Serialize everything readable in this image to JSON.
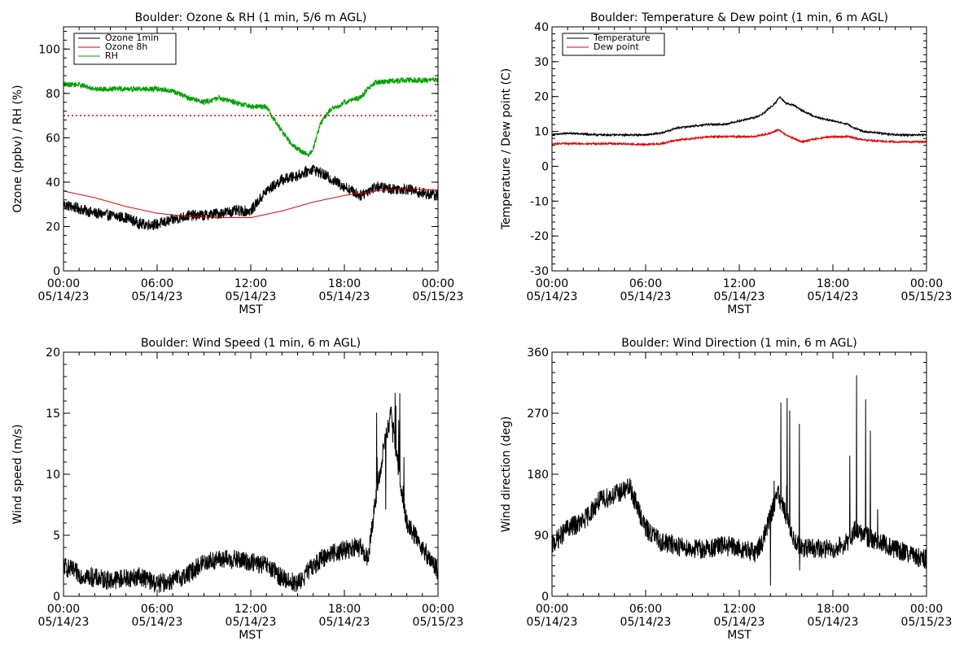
{
  "chart_data": [
    {
      "type": "line",
      "title": "Boulder: Ozone & RH (1 min, 5/6 m AGL)",
      "xlabel": "MST",
      "ylabel": "Ozone (ppbv) / RH (%)",
      "ylim": [
        0,
        110
      ],
      "y_major_ticks": [
        0,
        20,
        40,
        60,
        80,
        100
      ],
      "x_tick_labels": [
        [
          "00:00",
          "05/14/23"
        ],
        [
          "06:00",
          "05/14/23"
        ],
        [
          "12:00",
          "05/14/23"
        ],
        [
          "18:00",
          "05/14/23"
        ],
        [
          "00:00",
          "05/15/23"
        ]
      ],
      "xlim_hours": [
        0,
        24
      ],
      "legend_position": "top-left",
      "series": [
        {
          "name": "Ozone 1min",
          "color": "#000000",
          "noise": 2.5,
          "points": [
            [
              0,
              30
            ],
            [
              1,
              28
            ],
            [
              2,
              26
            ],
            [
              3,
              25
            ],
            [
              4,
              24
            ],
            [
              5,
              21
            ],
            [
              6,
              21
            ],
            [
              7,
              23
            ],
            [
              8,
              25
            ],
            [
              9,
              25
            ],
            [
              10,
              26
            ],
            [
              11,
              27
            ],
            [
              12,
              27
            ],
            [
              13,
              36
            ],
            [
              14,
              41
            ],
            [
              15,
              43
            ],
            [
              16,
              46
            ],
            [
              17,
              42
            ],
            [
              18,
              38
            ],
            [
              19,
              34
            ],
            [
              20,
              38
            ],
            [
              21,
              37
            ],
            [
              22,
              37
            ],
            [
              23,
              35
            ],
            [
              24,
              34
            ]
          ]
        },
        {
          "name": "Ozone 8h",
          "color": "#dd0000",
          "noise": 0,
          "points": [
            [
              0,
              36
            ],
            [
              2,
              33
            ],
            [
              4,
              29
            ],
            [
              6,
              26
            ],
            [
              8,
              24.5
            ],
            [
              10,
              24
            ],
            [
              12,
              24
            ],
            [
              14,
              27
            ],
            [
              16,
              31
            ],
            [
              18,
              34
            ],
            [
              20,
              36
            ],
            [
              22,
              37
            ],
            [
              24,
              36.5
            ]
          ]
        },
        {
          "name": "RH",
          "color": "#00a000",
          "noise": 1.2,
          "points": [
            [
              0,
              84
            ],
            [
              1,
              84
            ],
            [
              2,
              82
            ],
            [
              3,
              82
            ],
            [
              4,
              82
            ],
            [
              5,
              82
            ],
            [
              6,
              82
            ],
            [
              7,
              81
            ],
            [
              8,
              78
            ],
            [
              9,
              76
            ],
            [
              10,
              78
            ],
            [
              11,
              76
            ],
            [
              12,
              74
            ],
            [
              13,
              74
            ],
            [
              13.5,
              68
            ],
            [
              14,
              63
            ],
            [
              14.5,
              58
            ],
            [
              15,
              55
            ],
            [
              15.7,
              52
            ],
            [
              16,
              55
            ],
            [
              16.5,
              67
            ],
            [
              17,
              72
            ],
            [
              18,
              76
            ],
            [
              19,
              78
            ],
            [
              19.5,
              82
            ],
            [
              20,
              85
            ],
            [
              22,
              86
            ],
            [
              23,
              86
            ],
            [
              24,
              86
            ]
          ]
        }
      ],
      "reference_line": {
        "y": 70,
        "color": "#dd0000",
        "style": "dotted"
      }
    },
    {
      "type": "line",
      "title": "Boulder: Temperature & Dew point (1 min, 6 m AGL)",
      "xlabel": "MST",
      "ylabel": "Temperature / Dew point (C)",
      "ylim": [
        -30,
        40
      ],
      "y_major_ticks": [
        -30,
        -20,
        -10,
        0,
        10,
        20,
        30,
        40
      ],
      "x_tick_labels": [
        [
          "00:00",
          "05/14/23"
        ],
        [
          "06:00",
          "05/14/23"
        ],
        [
          "12:00",
          "05/14/23"
        ],
        [
          "18:00",
          "05/14/23"
        ],
        [
          "00:00",
          "05/15/23"
        ]
      ],
      "xlim_hours": [
        0,
        24
      ],
      "legend_position": "top-left",
      "series": [
        {
          "name": "Temperature",
          "color": "#000000",
          "noise": 0.25,
          "points": [
            [
              0,
              9
            ],
            [
              1,
              9.5
            ],
            [
              3,
              9
            ],
            [
              5,
              9
            ],
            [
              6,
              9
            ],
            [
              7,
              9.5
            ],
            [
              8,
              11
            ],
            [
              9,
              11.5
            ],
            [
              10,
              12
            ],
            [
              11,
              12
            ],
            [
              12,
              13
            ],
            [
              13,
              14
            ],
            [
              13.5,
              15
            ],
            [
              14,
              17
            ],
            [
              14.3,
              18
            ],
            [
              14.6,
              20
            ],
            [
              15,
              18
            ],
            [
              15.5,
              17.5
            ],
            [
              16,
              16
            ],
            [
              17,
              14
            ],
            [
              18,
              13
            ],
            [
              19,
              12
            ],
            [
              19.3,
              11
            ],
            [
              20,
              10
            ],
            [
              21,
              9.5
            ],
            [
              22,
              9
            ],
            [
              24,
              9
            ]
          ]
        },
        {
          "name": "Dew point",
          "color": "#dd0000",
          "noise": 0.25,
          "points": [
            [
              0,
              6.5
            ],
            [
              2,
              6.5
            ],
            [
              4,
              6.5
            ],
            [
              6,
              6.2
            ],
            [
              7,
              6.5
            ],
            [
              8,
              7.5
            ],
            [
              9,
              8
            ],
            [
              10,
              8.5
            ],
            [
              11,
              8.5
            ],
            [
              12,
              8.5
            ],
            [
              13,
              8.5
            ],
            [
              14,
              9.5
            ],
            [
              14.5,
              10.5
            ],
            [
              15,
              9
            ],
            [
              16,
              7
            ],
            [
              17,
              8
            ],
            [
              18,
              8.5
            ],
            [
              19,
              8.5
            ],
            [
              20,
              7.5
            ],
            [
              22,
              7
            ],
            [
              24,
              7
            ]
          ]
        }
      ]
    },
    {
      "type": "line",
      "title": "Boulder: Wind Speed (1 min, 6 m AGL)",
      "xlabel": "MST",
      "ylabel": "Wind speed (m/s)",
      "ylim": [
        0,
        20
      ],
      "y_major_ticks": [
        0,
        5,
        10,
        15,
        20
      ],
      "x_tick_labels": [
        [
          "00:00",
          "05/14/23"
        ],
        [
          "06:00",
          "05/14/23"
        ],
        [
          "12:00",
          "05/14/23"
        ],
        [
          "18:00",
          "05/14/23"
        ],
        [
          "00:00",
          "05/15/23"
        ]
      ],
      "xlim_hours": [
        0,
        24
      ],
      "series": [
        {
          "name": "",
          "color": "#000000",
          "noise": 0.8,
          "points": [
            [
              0,
              2.5
            ],
            [
              1,
              1.8
            ],
            [
              2,
              1.5
            ],
            [
              3,
              1.3
            ],
            [
              4,
              1.5
            ],
            [
              5,
              1.6
            ],
            [
              6,
              1
            ],
            [
              7,
              1.3
            ],
            [
              8,
              1.8
            ],
            [
              9,
              2.8
            ],
            [
              10,
              3
            ],
            [
              11,
              3
            ],
            [
              12,
              2.8
            ],
            [
              13,
              2.5
            ],
            [
              14,
              1.5
            ],
            [
              15,
              1
            ],
            [
              16,
              2.5
            ],
            [
              17,
              3.5
            ],
            [
              18,
              3.8
            ],
            [
              19,
              4
            ],
            [
              19.5,
              3
            ],
            [
              20,
              8
            ],
            [
              20.5,
              12
            ],
            [
              21,
              15
            ],
            [
              21.5,
              10
            ],
            [
              22,
              6
            ],
            [
              23,
              4
            ],
            [
              24,
              2
            ]
          ]
        }
      ]
    },
    {
      "type": "line",
      "title": "Boulder: Wind Direction (1 min, 6 m AGL)",
      "xlabel": "MST",
      "ylabel": "Wind direction (deg)",
      "ylim": [
        0,
        360
      ],
      "y_major_ticks": [
        0,
        90,
        180,
        270,
        360
      ],
      "x_tick_labels": [
        [
          "00:00",
          "05/14/23"
        ],
        [
          "06:00",
          "05/14/23"
        ],
        [
          "12:00",
          "05/14/23"
        ],
        [
          "18:00",
          "05/14/23"
        ],
        [
          "00:00",
          "05/15/23"
        ]
      ],
      "xlim_hours": [
        0,
        24
      ],
      "series": [
        {
          "name": "",
          "color": "#000000",
          "noise": 15,
          "points": [
            [
              0,
              75
            ],
            [
              1,
              100
            ],
            [
              2,
              110
            ],
            [
              3,
              140
            ],
            [
              4,
              150
            ],
            [
              5,
              160
            ],
            [
              5.5,
              130
            ],
            [
              6,
              100
            ],
            [
              7,
              80
            ],
            [
              8,
              75
            ],
            [
              9,
              70
            ],
            [
              10,
              70
            ],
            [
              11,
              75
            ],
            [
              12,
              70
            ],
            [
              13,
              65
            ],
            [
              13.5,
              80
            ],
            [
              14,
              120
            ],
            [
              14.5,
              150
            ],
            [
              15,
              120
            ],
            [
              15.5,
              80
            ],
            [
              16,
              70
            ],
            [
              17,
              70
            ],
            [
              18,
              70
            ],
            [
              19,
              80
            ],
            [
              19.5,
              100
            ],
            [
              20,
              90
            ],
            [
              21,
              80
            ],
            [
              22,
              70
            ],
            [
              23,
              60
            ],
            [
              24,
              55
            ]
          ]
        }
      ]
    }
  ]
}
